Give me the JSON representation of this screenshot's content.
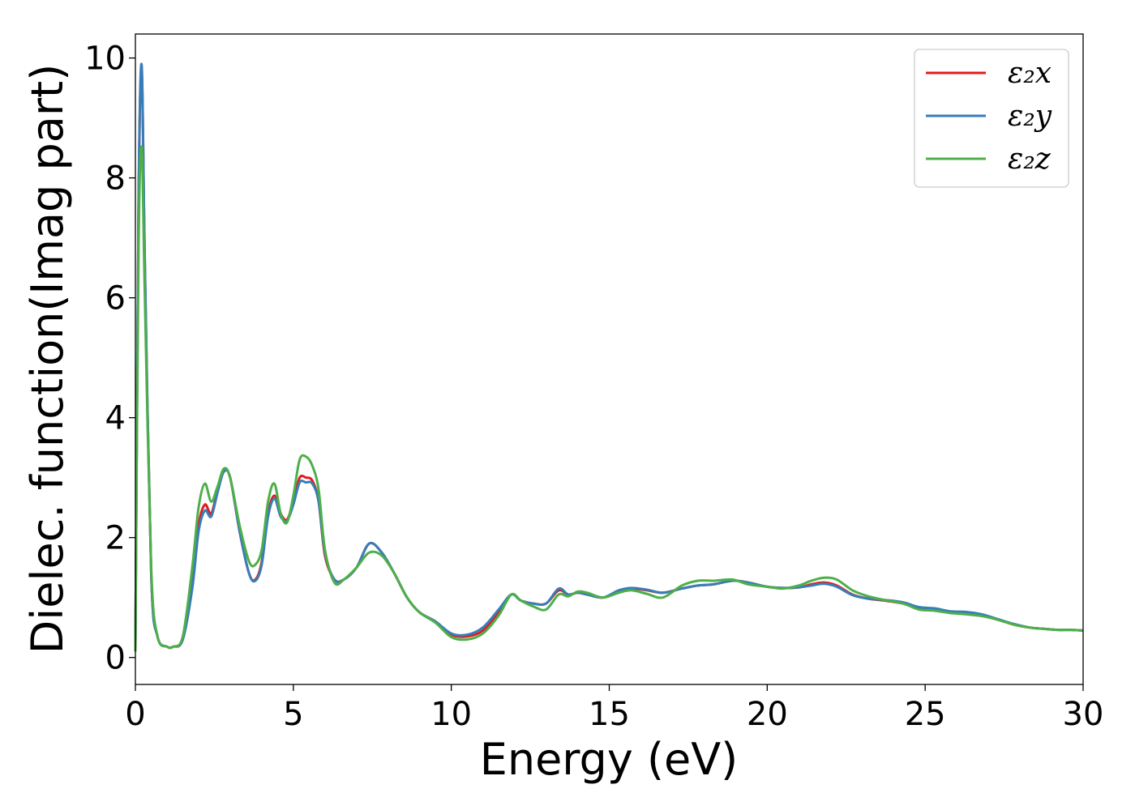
{
  "chart_data": {
    "type": "line",
    "xlabel": "Energy (eV)",
    "ylabel": "Dielec. function(Imag part)",
    "xlim": [
      0,
      30
    ],
    "ylim": [
      -0.45,
      10.4
    ],
    "xticks": [
      0,
      5,
      10,
      15,
      20,
      25,
      30
    ],
    "yticks": [
      0,
      2,
      4,
      6,
      8,
      10
    ],
    "grid": false,
    "legend_position": "top-right",
    "x": [
      0,
      0.1,
      0.2,
      0.3,
      0.5,
      0.7,
      1.0,
      1.2,
      1.5,
      1.8,
      2.0,
      2.2,
      2.4,
      2.6,
      2.8,
      3.0,
      3.3,
      3.6,
      3.8,
      4.0,
      4.2,
      4.4,
      4.6,
      4.8,
      5.0,
      5.2,
      5.4,
      5.6,
      5.8,
      6.0,
      6.3,
      6.6,
      7.0,
      7.4,
      7.8,
      8.2,
      8.6,
      9.0,
      9.5,
      10.0,
      10.5,
      11.0,
      11.5,
      11.9,
      12.2,
      12.6,
      13.0,
      13.4,
      13.7,
      14.0,
      14.3,
      14.8,
      15.3,
      15.7,
      16.2,
      16.7,
      17.3,
      17.8,
      18.3,
      18.9,
      19.4,
      20.0,
      20.5,
      21.0,
      21.4,
      21.8,
      22.2,
      22.7,
      23.2,
      23.7,
      24.3,
      24.8,
      25.3,
      25.8,
      26.3,
      26.8,
      27.3,
      27.8,
      28.3,
      28.7,
      29.2,
      29.6,
      30.0
    ],
    "series": [
      {
        "name": "ε₂x",
        "color": "#e41a1c",
        "values": [
          0.1,
          7.5,
          9.8,
          6.5,
          1.4,
          0.35,
          0.18,
          0.18,
          0.3,
          1.2,
          2.2,
          2.55,
          2.4,
          2.8,
          3.1,
          3.0,
          2.1,
          1.4,
          1.3,
          1.6,
          2.4,
          2.7,
          2.4,
          2.3,
          2.6,
          3.0,
          3.0,
          2.95,
          2.6,
          1.7,
          1.3,
          1.3,
          1.5,
          1.9,
          1.75,
          1.4,
          1.0,
          0.75,
          0.6,
          0.38,
          0.35,
          0.45,
          0.75,
          1.05,
          0.95,
          0.9,
          0.9,
          1.12,
          1.05,
          1.08,
          1.05,
          1.0,
          1.1,
          1.15,
          1.12,
          1.08,
          1.15,
          1.2,
          1.22,
          1.28,
          1.25,
          1.18,
          1.16,
          1.17,
          1.22,
          1.25,
          1.2,
          1.05,
          0.98,
          0.95,
          0.9,
          0.82,
          0.8,
          0.75,
          0.74,
          0.7,
          0.63,
          0.55,
          0.5,
          0.48,
          0.46,
          0.46,
          0.45
        ]
      },
      {
        "name": "ε₂y",
        "color": "#377eb8",
        "values": [
          0.1,
          7.6,
          9.88,
          6.6,
          1.4,
          0.35,
          0.18,
          0.18,
          0.3,
          1.15,
          2.1,
          2.45,
          2.35,
          2.75,
          3.1,
          3.0,
          2.1,
          1.4,
          1.28,
          1.55,
          2.35,
          2.65,
          2.35,
          2.28,
          2.55,
          2.92,
          2.92,
          2.9,
          2.6,
          1.75,
          1.3,
          1.3,
          1.5,
          1.9,
          1.75,
          1.4,
          1.0,
          0.75,
          0.6,
          0.4,
          0.38,
          0.5,
          0.8,
          1.05,
          0.95,
          0.9,
          0.9,
          1.15,
          1.05,
          1.08,
          1.05,
          1.0,
          1.12,
          1.16,
          1.13,
          1.08,
          1.15,
          1.2,
          1.22,
          1.28,
          1.25,
          1.18,
          1.16,
          1.17,
          1.2,
          1.23,
          1.18,
          1.04,
          0.98,
          0.96,
          0.92,
          0.84,
          0.82,
          0.77,
          0.76,
          0.72,
          0.64,
          0.56,
          0.5,
          0.48,
          0.46,
          0.46,
          0.45
        ]
      },
      {
        "name": "ε₂z",
        "color": "#4daf4a",
        "values": [
          0.1,
          6.8,
          8.5,
          6.0,
          1.5,
          0.35,
          0.18,
          0.18,
          0.35,
          1.5,
          2.5,
          2.9,
          2.6,
          2.85,
          3.15,
          3.0,
          2.2,
          1.6,
          1.55,
          1.8,
          2.6,
          2.9,
          2.4,
          2.25,
          2.7,
          3.3,
          3.35,
          3.2,
          2.8,
          1.8,
          1.25,
          1.3,
          1.5,
          1.75,
          1.7,
          1.4,
          1.0,
          0.75,
          0.58,
          0.34,
          0.3,
          0.4,
          0.7,
          1.05,
          0.95,
          0.85,
          0.8,
          1.05,
          1.02,
          1.1,
          1.08,
          1.0,
          1.08,
          1.12,
          1.06,
          1.0,
          1.2,
          1.28,
          1.28,
          1.3,
          1.22,
          1.18,
          1.15,
          1.2,
          1.28,
          1.33,
          1.3,
          1.12,
          1.02,
          0.96,
          0.9,
          0.8,
          0.78,
          0.74,
          0.72,
          0.69,
          0.63,
          0.55,
          0.5,
          0.48,
          0.46,
          0.46,
          0.45
        ]
      }
    ]
  },
  "legend": {
    "items": [
      {
        "label": "ε₂x",
        "color": "#e41a1c"
      },
      {
        "label": "ε₂y",
        "color": "#377eb8"
      },
      {
        "label": "ε₂z",
        "color": "#4daf4a"
      }
    ]
  }
}
